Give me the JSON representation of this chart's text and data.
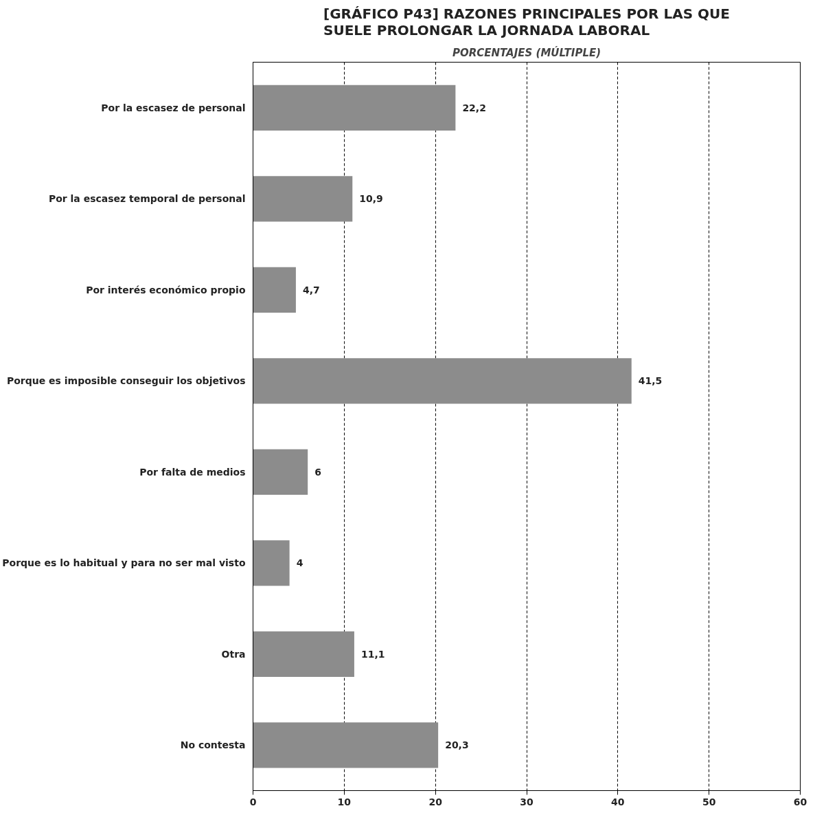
{
  "chart_data": {
    "type": "bar",
    "orientation": "horizontal",
    "title": "[GRÁFICO P43] RAZONES PRINCIPALES POR LAS QUE SUELE PROLONGAR LA JORNADA LABORAL",
    "subtitle": "PORCENTAJES (MÚLTIPLE)",
    "categories": [
      "Por la escasez de personal",
      "Por la escasez temporal de personal",
      "Por interés económico propio",
      "Porque es imposible conseguir los objetivos",
      "Por falta de medios",
      "Porque es lo habitual y para no ser mal visto",
      "Otra",
      "No contesta"
    ],
    "values": [
      22.2,
      10.9,
      4.7,
      41.5,
      6,
      4,
      11.1,
      20.3
    ],
    "value_labels": [
      "22,2",
      "10,9",
      "4,7",
      "41,5",
      "6",
      "4",
      "11,1",
      "20,3"
    ],
    "color": "#8c8c8c",
    "xlim": [
      0,
      60
    ],
    "xticks": [
      0,
      10,
      20,
      30,
      40,
      50,
      60
    ],
    "grid": "x",
    "line_style": "dashed"
  }
}
